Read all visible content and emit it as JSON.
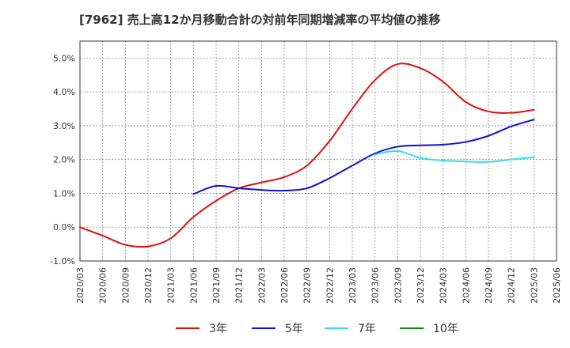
{
  "chart_data": {
    "type": "line",
    "title": "[7962]  売上高12か月移動合計の対前年同期増減率の平均値の推移",
    "xlabel": "",
    "ylabel": "",
    "ylim": [
      -1.0,
      5.5
    ],
    "y_ticks": [
      "5.0%",
      "4.0%",
      "3.0%",
      "2.0%",
      "1.0%",
      "0.0%",
      "-1.0%"
    ],
    "y_tick_values": [
      5.0,
      4.0,
      3.0,
      2.0,
      1.0,
      0.0,
      -1.0
    ],
    "x_ticks": [
      "2020/03",
      "2020/06",
      "2020/09",
      "2020/12",
      "2021/03",
      "2021/06",
      "2021/09",
      "2021/12",
      "2022/03",
      "2022/06",
      "2022/09",
      "2022/12",
      "2023/03",
      "2023/06",
      "2023/09",
      "2023/12",
      "2024/03",
      "2024/06",
      "2024/09",
      "2024/12",
      "2025/03",
      "2025/06"
    ],
    "grid": true,
    "legend_position": "bottom",
    "series": [
      {
        "name": "3年",
        "color": "#dd1111",
        "points": [
          [
            "2020/03",
            0.0
          ],
          [
            "2020/06",
            -0.25
          ],
          [
            "2020/09",
            -0.52
          ],
          [
            "2020/12",
            -0.57
          ],
          [
            "2021/03",
            -0.33
          ],
          [
            "2021/06",
            0.3
          ],
          [
            "2021/09",
            0.78
          ],
          [
            "2021/12",
            1.15
          ],
          [
            "2022/03",
            1.32
          ],
          [
            "2022/06",
            1.48
          ],
          [
            "2022/09",
            1.82
          ],
          [
            "2022/12",
            2.55
          ],
          [
            "2023/03",
            3.5
          ],
          [
            "2023/06",
            4.35
          ],
          [
            "2023/09",
            4.82
          ],
          [
            "2023/12",
            4.7
          ],
          [
            "2024/03",
            4.3
          ],
          [
            "2024/06",
            3.7
          ],
          [
            "2024/09",
            3.42
          ],
          [
            "2024/12",
            3.38
          ],
          [
            "2025/03",
            3.47
          ]
        ]
      },
      {
        "name": "5年",
        "color": "#1111cc",
        "points": [
          [
            "2021/06",
            0.98
          ],
          [
            "2021/09",
            1.22
          ],
          [
            "2021/12",
            1.15
          ],
          [
            "2022/03",
            1.1
          ],
          [
            "2022/06",
            1.08
          ],
          [
            "2022/09",
            1.15
          ],
          [
            "2022/12",
            1.45
          ],
          [
            "2023/03",
            1.82
          ],
          [
            "2023/06",
            2.18
          ],
          [
            "2023/09",
            2.38
          ],
          [
            "2023/12",
            2.42
          ],
          [
            "2024/03",
            2.44
          ],
          [
            "2024/06",
            2.52
          ],
          [
            "2024/09",
            2.7
          ],
          [
            "2024/12",
            2.98
          ],
          [
            "2025/03",
            3.18
          ]
        ]
      },
      {
        "name": "7年",
        "color": "#33ddee",
        "points": [
          [
            "2023/06",
            2.15
          ],
          [
            "2023/09",
            2.25
          ],
          [
            "2023/12",
            2.05
          ],
          [
            "2024/03",
            1.97
          ],
          [
            "2024/06",
            1.94
          ],
          [
            "2024/09",
            1.93
          ],
          [
            "2024/12",
            2.0
          ],
          [
            "2025/03",
            2.07
          ]
        ]
      },
      {
        "name": "10年",
        "color": "#118811",
        "points": []
      }
    ]
  }
}
